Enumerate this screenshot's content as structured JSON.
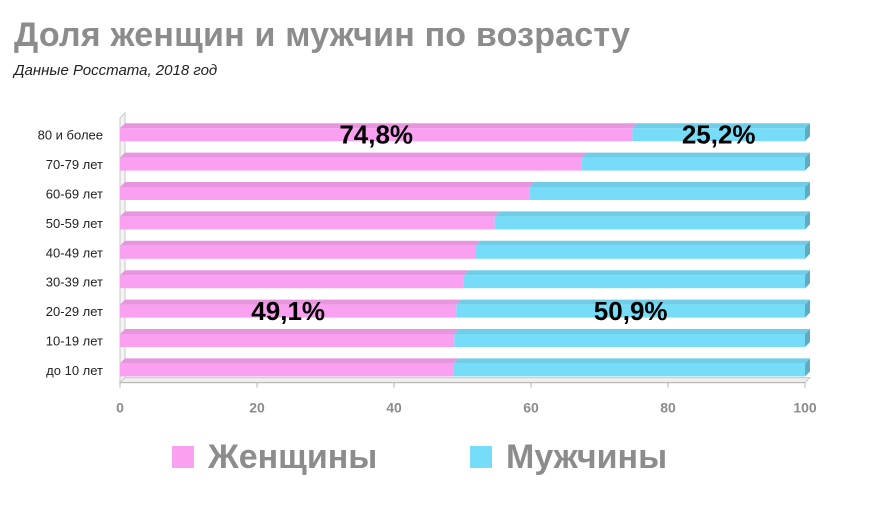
{
  "chart_data": {
    "type": "bar",
    "orientation": "horizontal",
    "stacked": true,
    "title": "Доля женщин и мужчин по возрасту",
    "subtitle": "Данные Росстата, 2018 год",
    "categories": [
      "80 и более",
      "70-79 лет",
      "60-69 лет",
      "50-59 лет",
      "40-49 лет",
      "30-39 лет",
      "20-29 лет",
      "10-19 лет",
      "до 10 лет"
    ],
    "series": [
      {
        "name": "Женщины",
        "color": "#f9a0f0",
        "values": [
          74.8,
          67.4,
          59.8,
          54.7,
          51.9,
          50.2,
          49.1,
          48.8,
          48.7
        ]
      },
      {
        "name": "Мужчины",
        "color": "#77dcf8",
        "values": [
          25.2,
          32.6,
          40.2,
          45.3,
          48.1,
          49.8,
          50.9,
          51.2,
          51.3
        ]
      }
    ],
    "xlim": [
      0,
      100
    ],
    "xticks": [
      "0",
      "20",
      "40",
      "60",
      "80",
      "100"
    ],
    "grid": false,
    "legend_position": "bottom",
    "annotations": [
      {
        "text": "74,8%",
        "category": "80 и более",
        "series": "Женщины"
      },
      {
        "text": "25,2%",
        "category": "80 и более",
        "series": "Мужчины"
      },
      {
        "text": "49,1%",
        "category": "20-29 лет",
        "series": "Женщины"
      },
      {
        "text": "50,9%",
        "category": "20-29 лет",
        "series": "Мужчины"
      }
    ]
  },
  "legend": {
    "women": {
      "label": "Женщины",
      "color": "#f9a0f0"
    },
    "men": {
      "label": "Мужчины",
      "color": "#77dcf8"
    }
  }
}
